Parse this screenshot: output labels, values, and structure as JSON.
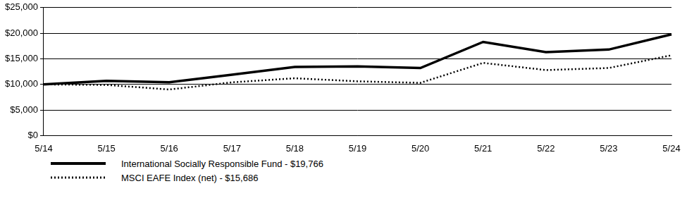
{
  "chart_data": {
    "type": "line",
    "categories": [
      "5/14",
      "5/15",
      "5/16",
      "5/17",
      "5/18",
      "5/19",
      "5/20",
      "5/21",
      "5/22",
      "5/23",
      "5/24"
    ],
    "series": [
      {
        "name": "International Socially Responsible Fund - $19,766",
        "color": "#000000",
        "line_style": "solid",
        "values": [
          10000,
          10700,
          10400,
          11900,
          13400,
          13500,
          13200,
          18300,
          16300,
          16800,
          19766
        ]
      },
      {
        "name": "MSCI EAFE Index (net) - $15,686",
        "color": "#000000",
        "line_style": "dotted",
        "values": [
          10000,
          9900,
          9000,
          10400,
          11200,
          10600,
          10300,
          14200,
          12800,
          13200,
          15686
        ]
      }
    ],
    "ylim": [
      0,
      25000
    ],
    "yticks": [
      {
        "value": 0,
        "label": "$0"
      },
      {
        "value": 5000,
        "label": "$5,000"
      },
      {
        "value": 10000,
        "label": "$10,000"
      },
      {
        "value": 15000,
        "label": "$15,000"
      },
      {
        "value": 20000,
        "label": "$20,000"
      },
      {
        "value": 25000,
        "label": "$25,000"
      }
    ],
    "grid": true,
    "legend": "lower left"
  }
}
